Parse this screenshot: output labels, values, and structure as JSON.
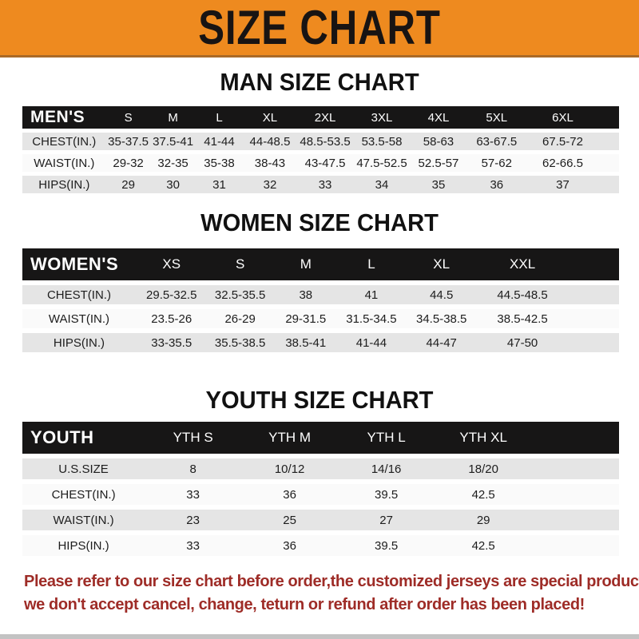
{
  "banner": {
    "title": "SIZE CHART",
    "bg_color": "#ee8a1f",
    "text_color": "#181413"
  },
  "tables": [
    {
      "title": "MAN SIZE CHART",
      "header_label": "MEN'S",
      "columns": [
        "S",
        "M",
        "L",
        "XL",
        "2XL",
        "3XL",
        "4XL",
        "5XL",
        "6XL"
      ],
      "rows": [
        {
          "label": "CHEST(IN.)",
          "values": [
            "35-37.5",
            "37.5-41",
            "41-44",
            "44-48.5",
            "48.5-53.5",
            "53.5-58",
            "58-63",
            "63-67.5",
            "67.5-72"
          ]
        },
        {
          "label": "WAIST(IN.)",
          "values": [
            "29-32",
            "32-35",
            "35-38",
            "38-43",
            "43-47.5",
            "47.5-52.5",
            "52.5-57",
            "57-62",
            "62-66.5"
          ]
        },
        {
          "label": "HIPS(IN.)",
          "values": [
            "29",
            "30",
            "31",
            "32",
            "33",
            "34",
            "35",
            "36",
            "37"
          ]
        }
      ]
    },
    {
      "title": "WOMEN SIZE CHART",
      "header_label": "WOMEN'S",
      "columns": [
        "XS",
        "S",
        "M",
        "L",
        "XL",
        "XXL"
      ],
      "rows": [
        {
          "label": "CHEST(IN.)",
          "values": [
            "29.5-32.5",
            "32.5-35.5",
            "38",
            "41",
            "44.5",
            "44.5-48.5"
          ]
        },
        {
          "label": "WAIST(IN.)",
          "values": [
            "23.5-26",
            "26-29",
            "29-31.5",
            "31.5-34.5",
            "34.5-38.5",
            "38.5-42.5"
          ]
        },
        {
          "label": "HIPS(IN.)",
          "values": [
            "33-35.5",
            "35.5-38.5",
            "38.5-41",
            "41-44",
            "44-47",
            "47-50"
          ]
        }
      ]
    },
    {
      "title": "YOUTH SIZE CHART",
      "header_label": "YOUTH",
      "columns": [
        "YTH S",
        "YTH M",
        "YTH L",
        "YTH XL"
      ],
      "rows": [
        {
          "label": "U.S.SIZE",
          "values": [
            "8",
            "10/12",
            "14/16",
            "18/20"
          ]
        },
        {
          "label": "CHEST(IN.)",
          "values": [
            "33",
            "36",
            "39.5",
            "42.5"
          ]
        },
        {
          "label": "WAIST(IN.)",
          "values": [
            "23",
            "25",
            "27",
            "29"
          ]
        },
        {
          "label": "HIPS(IN.)",
          "values": [
            "33",
            "36",
            "39.5",
            "42.5"
          ]
        }
      ]
    }
  ],
  "footer_note": {
    "line1": "Please refer to our size chart before order,the customized jerseys are special products,",
    "line2": "we don't accept cancel, change, teturn or refund after order has been placed!",
    "text_color": "#9e2c27"
  },
  "colors": {
    "table_header_bar": "#171616",
    "row_stripe_gray": "#e5e5e5",
    "row_stripe_white": "#fafafa",
    "banner_border": "#aa6a27",
    "bottom_strip": "#c3c3c3"
  }
}
